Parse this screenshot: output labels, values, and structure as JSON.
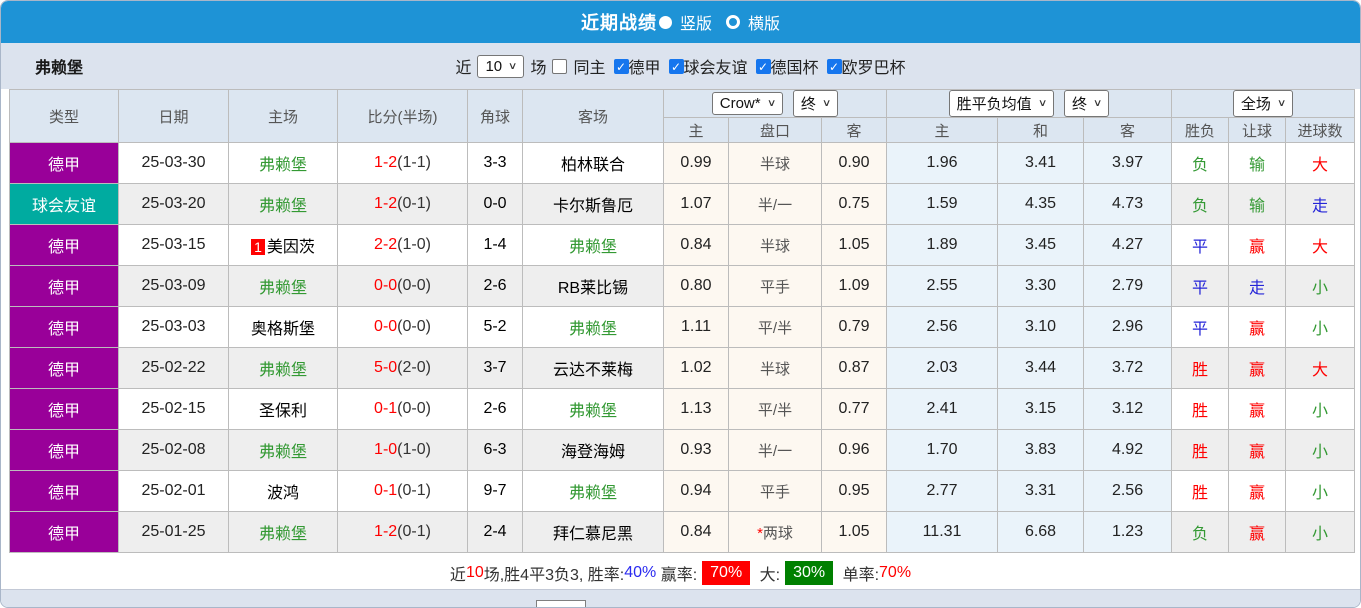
{
  "title_bar": {
    "title": "近期战绩",
    "vertical_label": "竖版",
    "horizontal_label": "横版",
    "selected_mode": "竖版"
  },
  "filter_bar": {
    "team": "弗赖堡",
    "near_label": "近",
    "match_count": "10",
    "games_label": "场",
    "same_home_label": "同主",
    "same_home_checked": false,
    "leagues": [
      "德甲",
      "球会友谊",
      "德国杯",
      "欧罗巴杯"
    ]
  },
  "table": {
    "column_headers": {
      "type": "类型",
      "date": "日期",
      "home": "主场",
      "score": "比分(半场)",
      "corner": "角球",
      "away": "客场",
      "odds_home": "主",
      "handicap": "盘口",
      "odds_away": "客",
      "avg_home": "主",
      "avg_draw": "和",
      "avg_away": "客",
      "result": "胜负",
      "handicap_result": "让球",
      "goals": "进球数"
    },
    "selects": {
      "odds_company": "Crow*",
      "odds_period": "终",
      "avg_type": "胜平负均值",
      "avg_period": "终",
      "scope": "全场"
    },
    "rows": [
      {
        "league": "德甲",
        "lc": "purple",
        "date": "25-03-30",
        "home": "弗赖堡",
        "hg": true,
        "badge": "",
        "score": "1-2",
        "half": "(1-1)",
        "corner": "3-3",
        "away": "柏林联合",
        "ag": false,
        "o1": "0.99",
        "hcap": "半球",
        "star": false,
        "o2": "0.90",
        "a1": "1.96",
        "a2": "3.41",
        "a3": "3.97",
        "res": "负",
        "resc": "g",
        "hr": "输",
        "hrc": "g",
        "goal": "大",
        "goalc": "r"
      },
      {
        "league": "球会友谊",
        "lc": "teal",
        "date": "25-03-20",
        "home": "弗赖堡",
        "hg": true,
        "badge": "",
        "score": "1-2",
        "half": "(0-1)",
        "corner": "0-0",
        "away": "卡尔斯鲁厄",
        "ag": false,
        "o1": "1.07",
        "hcap": "半/一",
        "star": false,
        "o2": "0.75",
        "a1": "1.59",
        "a2": "4.35",
        "a3": "4.73",
        "res": "负",
        "resc": "g",
        "hr": "输",
        "hrc": "g",
        "goal": "走",
        "goalc": "b"
      },
      {
        "league": "德甲",
        "lc": "purple",
        "date": "25-03-15",
        "home": "美因茨",
        "hg": false,
        "badge": "1",
        "score": "2-2",
        "half": "(1-0)",
        "corner": "1-4",
        "away": "弗赖堡",
        "ag": true,
        "o1": "0.84",
        "hcap": "半球",
        "star": false,
        "o2": "1.05",
        "a1": "1.89",
        "a2": "3.45",
        "a3": "4.27",
        "res": "平",
        "resc": "b",
        "hr": "赢",
        "hrc": "r",
        "goal": "大",
        "goalc": "r"
      },
      {
        "league": "德甲",
        "lc": "purple",
        "date": "25-03-09",
        "home": "弗赖堡",
        "hg": true,
        "badge": "",
        "score": "0-0",
        "half": "(0-0)",
        "corner": "2-6",
        "away": "RB莱比锡",
        "ag": false,
        "o1": "0.80",
        "hcap": "平手",
        "star": false,
        "o2": "1.09",
        "a1": "2.55",
        "a2": "3.30",
        "a3": "2.79",
        "res": "平",
        "resc": "b",
        "hr": "走",
        "hrc": "b",
        "goal": "小",
        "goalc": "g"
      },
      {
        "league": "德甲",
        "lc": "purple",
        "date": "25-03-03",
        "home": "奥格斯堡",
        "hg": false,
        "badge": "",
        "score": "0-0",
        "half": "(0-0)",
        "corner": "5-2",
        "away": "弗赖堡",
        "ag": true,
        "o1": "1.11",
        "hcap": "平/半",
        "star": false,
        "o2": "0.79",
        "a1": "2.56",
        "a2": "3.10",
        "a3": "2.96",
        "res": "平",
        "resc": "b",
        "hr": "赢",
        "hrc": "r",
        "goal": "小",
        "goalc": "g"
      },
      {
        "league": "德甲",
        "lc": "purple",
        "date": "25-02-22",
        "home": "弗赖堡",
        "hg": true,
        "badge": "",
        "score": "5-0",
        "half": "(2-0)",
        "corner": "3-7",
        "away": "云达不莱梅",
        "ag": false,
        "o1": "1.02",
        "hcap": "半球",
        "star": false,
        "o2": "0.87",
        "a1": "2.03",
        "a2": "3.44",
        "a3": "3.72",
        "res": "胜",
        "resc": "r",
        "hr": "赢",
        "hrc": "r",
        "goal": "大",
        "goalc": "r"
      },
      {
        "league": "德甲",
        "lc": "purple",
        "date": "25-02-15",
        "home": "圣保利",
        "hg": false,
        "badge": "",
        "score": "0-1",
        "half": "(0-0)",
        "corner": "2-6",
        "away": "弗赖堡",
        "ag": true,
        "o1": "1.13",
        "hcap": "平/半",
        "star": false,
        "o2": "0.77",
        "a1": "2.41",
        "a2": "3.15",
        "a3": "3.12",
        "res": "胜",
        "resc": "r",
        "hr": "赢",
        "hrc": "r",
        "goal": "小",
        "goalc": "g"
      },
      {
        "league": "德甲",
        "lc": "purple",
        "date": "25-02-08",
        "home": "弗赖堡",
        "hg": true,
        "badge": "",
        "score": "1-0",
        "half": "(1-0)",
        "corner": "6-3",
        "away": "海登海姆",
        "ag": false,
        "o1": "0.93",
        "hcap": "半/一",
        "star": false,
        "o2": "0.96",
        "a1": "1.70",
        "a2": "3.83",
        "a3": "4.92",
        "res": "胜",
        "resc": "r",
        "hr": "赢",
        "hrc": "r",
        "goal": "小",
        "goalc": "g"
      },
      {
        "league": "德甲",
        "lc": "purple",
        "date": "25-02-01",
        "home": "波鸿",
        "hg": false,
        "badge": "",
        "score": "0-1",
        "half": "(0-1)",
        "corner": "9-7",
        "away": "弗赖堡",
        "ag": true,
        "o1": "0.94",
        "hcap": "平手",
        "star": false,
        "o2": "0.95",
        "a1": "2.77",
        "a2": "3.31",
        "a3": "2.56",
        "res": "胜",
        "resc": "r",
        "hr": "赢",
        "hrc": "r",
        "goal": "小",
        "goalc": "g"
      },
      {
        "league": "德甲",
        "lc": "purple",
        "date": "25-01-25",
        "home": "弗赖堡",
        "hg": true,
        "badge": "",
        "score": "1-2",
        "half": "(0-1)",
        "corner": "2-4",
        "away": "拜仁慕尼黑",
        "ag": false,
        "o1": "0.84",
        "hcap": "两球",
        "star": true,
        "o2": "1.05",
        "a1": "11.31",
        "a2": "6.68",
        "a3": "1.23",
        "res": "负",
        "resc": "g",
        "hr": "赢",
        "hrc": "r",
        "goal": "小",
        "goalc": "g"
      }
    ]
  },
  "footer": {
    "segments": [
      {
        "text": "近",
        "style": "plain"
      },
      {
        "text": "10",
        "style": "red"
      },
      {
        "text": "场,胜4平3负3, 胜率:",
        "style": "plain"
      },
      {
        "text": "40%",
        "style": "blue"
      },
      {
        "text": " 赢率:",
        "style": "plain"
      },
      {
        "text": "70%",
        "style": "red-badge"
      },
      {
        "text": " 大:",
        "style": "plain"
      },
      {
        "text": "30%",
        "style": "green-badge"
      },
      {
        "text": " 单率:",
        "style": "plain"
      },
      {
        "text": "70%",
        "style": "red"
      }
    ]
  },
  "colors": {
    "header_blue": "#1e93d6",
    "bundesliga_purple": "#990099",
    "friendly_teal": "#00aba0",
    "win_red": "#ff0000",
    "lose_green": "#339933",
    "draw_blue": "#2424d8",
    "win_rate_badge_bg": "#ff0000",
    "big_rate_badge_bg": "#008000"
  }
}
